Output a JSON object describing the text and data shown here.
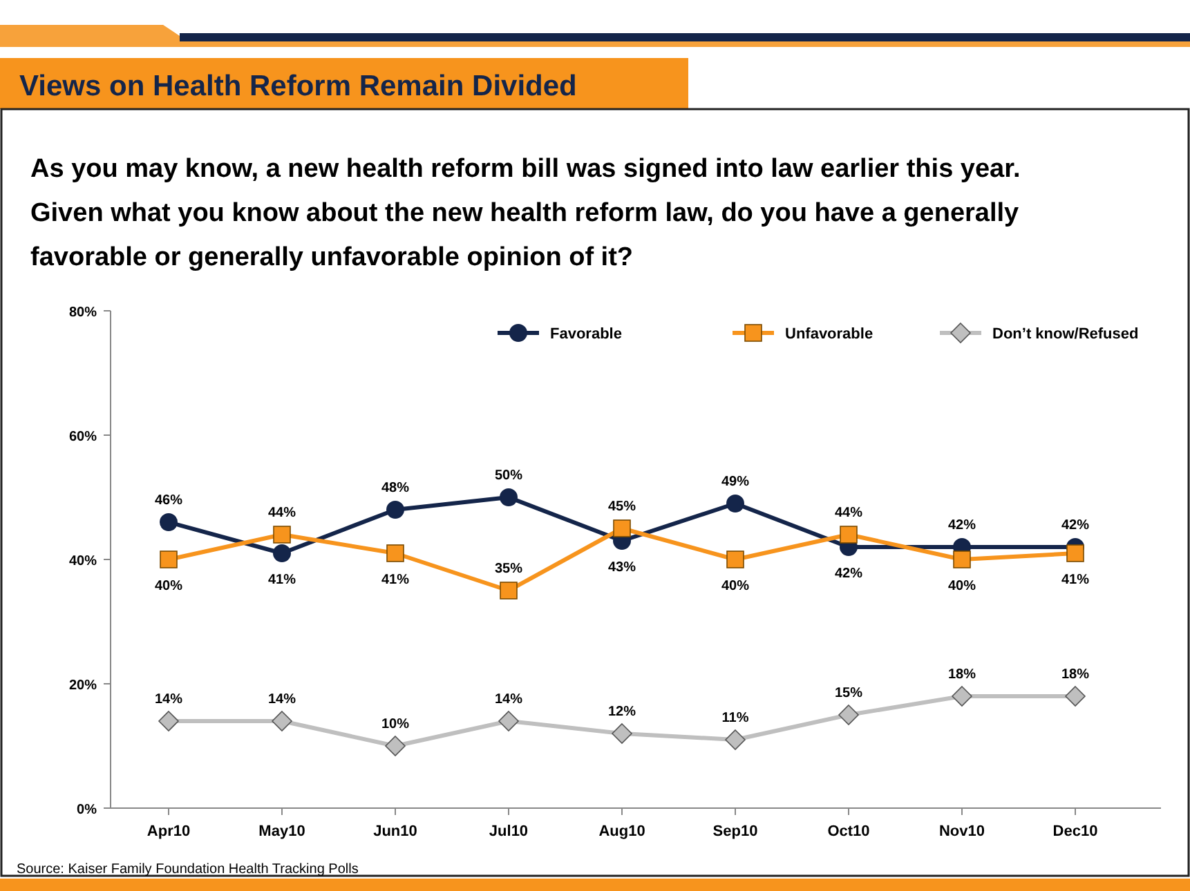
{
  "chart_data": {
    "type": "line",
    "title": "Views on Health Reform Remain Divided",
    "subtitle": "As you may know, a new health reform bill was signed into law earlier this year. Given what you know about the new health reform law, do you have a generally favorable or generally unfavorable opinion of it?",
    "categories": [
      "Apr10",
      "May10",
      "Jun10",
      "Jul10",
      "Aug10",
      "Sep10",
      "Oct10",
      "Nov10",
      "Dec10"
    ],
    "series": [
      {
        "name": "Favorable",
        "color": "#14254a",
        "marker": "circle",
        "values": [
          46,
          41,
          48,
          50,
          43,
          49,
          42,
          42,
          42
        ],
        "value_labels": [
          "46%",
          "41%",
          "48%",
          "50%",
          "43%",
          "49%",
          "42%",
          "42%",
          "42%"
        ]
      },
      {
        "name": "Unfavorable",
        "color": "#f7941d",
        "marker": "square",
        "values": [
          40,
          44,
          41,
          35,
          45,
          40,
          44,
          40,
          41
        ],
        "value_labels": [
          "40%",
          "44%",
          "41%",
          "35%",
          "45%",
          "40%",
          "44%",
          "40%",
          "41%"
        ]
      },
      {
        "name": "Don’t know/Refused",
        "color": "#bfbfbf",
        "marker": "diamond",
        "values": [
          14,
          14,
          10,
          14,
          12,
          11,
          15,
          18,
          18
        ],
        "value_labels": [
          "14%",
          "14%",
          "10%",
          "14%",
          "12%",
          "11%",
          "15%",
          "18%",
          "18%"
        ]
      }
    ],
    "ylim": [
      0,
      80
    ],
    "yticks": [
      {
        "value": 0,
        "label": "0%"
      },
      {
        "value": 20,
        "label": "20%"
      },
      {
        "value": 40,
        "label": "40%"
      },
      {
        "value": 60,
        "label": "60%"
      },
      {
        "value": 80,
        "label": "80%"
      }
    ],
    "legend": "top right",
    "grid": false,
    "annotations": [
      "Source: Kaiser Family Foundation Health Tracking Polls"
    ]
  }
}
